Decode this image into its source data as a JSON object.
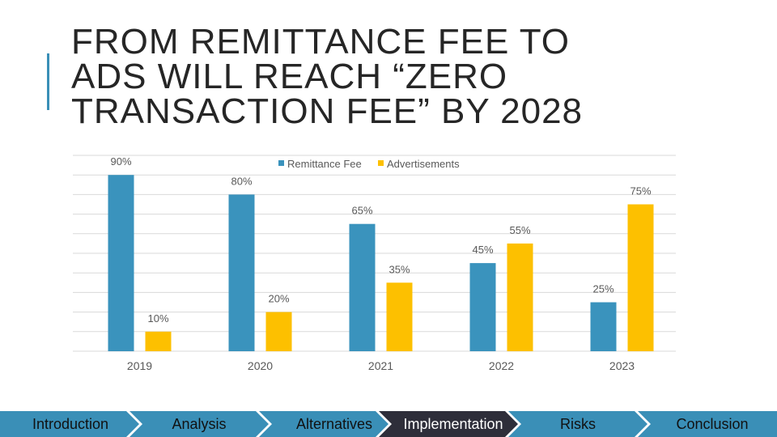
{
  "slide": {
    "title_lines": [
      "FROM REMITTANCE FEE TO",
      "ADS WILL REACH “ZERO",
      "TRANSACTION FEE” BY 2028"
    ]
  },
  "colors": {
    "accent": "#3a8fb7",
    "remittance": "#3a93bd",
    "ads": "#fdc000",
    "grid": "#d9d9d9",
    "label": "#595959"
  },
  "chart_data": {
    "type": "bar",
    "categories": [
      "2019",
      "2020",
      "2021",
      "2022",
      "2023"
    ],
    "series": [
      {
        "name": "Remittance Fee",
        "values": [
          90,
          80,
          65,
          45,
          25
        ],
        "labels": [
          "90%",
          "80%",
          "65%",
          "45%",
          "25%"
        ]
      },
      {
        "name": "Advertisements",
        "values": [
          10,
          20,
          35,
          55,
          75
        ],
        "labels": [
          "10%",
          "20%",
          "35%",
          "55%",
          "75%"
        ]
      }
    ],
    "ylim": [
      0,
      100
    ],
    "grid": true,
    "legend": "top-center",
    "title": "",
    "xlabel": "",
    "ylabel": ""
  },
  "nav": {
    "items": [
      {
        "label": "Introduction",
        "active": false
      },
      {
        "label": "Analysis",
        "active": false
      },
      {
        "label": "Alternatives",
        "active": false
      },
      {
        "label": "Implementation",
        "active": true
      },
      {
        "label": "Risks",
        "active": false
      },
      {
        "label": "Conclusion",
        "active": false
      }
    ]
  }
}
